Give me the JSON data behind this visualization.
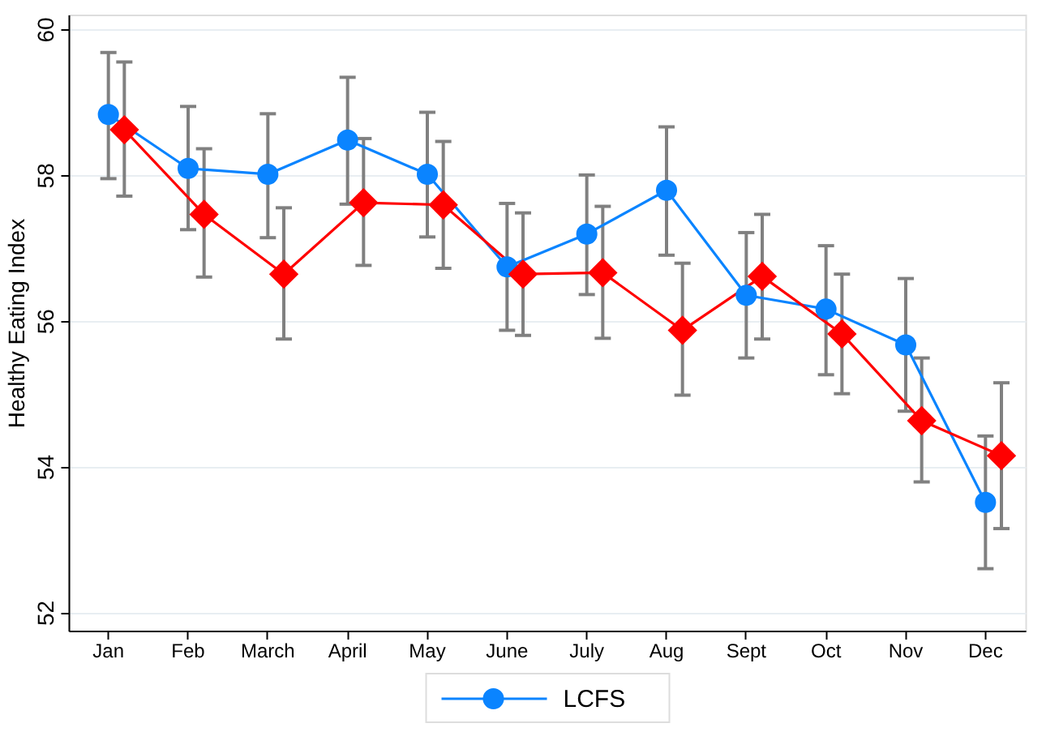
{
  "chart_data": {
    "type": "line",
    "ylabel": "Healthy Eating Index",
    "categories": [
      "Jan",
      "Feb",
      "March",
      "April",
      "May",
      "June",
      "July",
      "Aug",
      "Sept",
      "Oct",
      "Nov",
      "Dec"
    ],
    "ylim": [
      51.75,
      60.2
    ],
    "yticks": [
      52,
      54,
      56,
      58,
      60
    ],
    "grid": "y",
    "legend": "bottom",
    "line_style": "solid",
    "series": [
      {
        "name": "LCFS",
        "color": "#0a84ff",
        "marker": "circle",
        "values": [
          58.83,
          58.09,
          58.01,
          58.48,
          58.01,
          56.74,
          57.19,
          57.79,
          56.35,
          56.16,
          55.67,
          53.51
        ],
        "errors": [
          [
            57.95,
            59.68
          ],
          [
            57.25,
            58.94
          ],
          [
            57.14,
            58.84
          ],
          [
            57.6,
            59.34
          ],
          [
            57.15,
            58.86
          ],
          [
            55.87,
            57.61
          ],
          [
            56.36,
            58.0
          ],
          [
            56.9,
            58.66
          ],
          [
            55.49,
            57.21
          ],
          [
            55.26,
            57.03
          ],
          [
            54.76,
            56.58
          ],
          [
            52.6,
            54.42
          ]
        ]
      },
      {
        "color": "#ff0000",
        "marker": "diamond",
        "values": [
          58.62,
          57.46,
          56.64,
          57.62,
          57.59,
          56.64,
          56.66,
          55.87,
          56.61,
          55.82,
          54.63,
          54.15
        ],
        "errors": [
          [
            57.71,
            59.55
          ],
          [
            56.6,
            58.36
          ],
          [
            55.75,
            57.55
          ],
          [
            56.76,
            58.5
          ],
          [
            56.72,
            58.46
          ],
          [
            55.8,
            57.48
          ],
          [
            55.76,
            57.57
          ],
          [
            54.98,
            56.79
          ],
          [
            55.75,
            57.46
          ],
          [
            55.0,
            56.64
          ],
          [
            53.79,
            55.49
          ],
          [
            53.15,
            55.15
          ]
        ]
      }
    ]
  }
}
